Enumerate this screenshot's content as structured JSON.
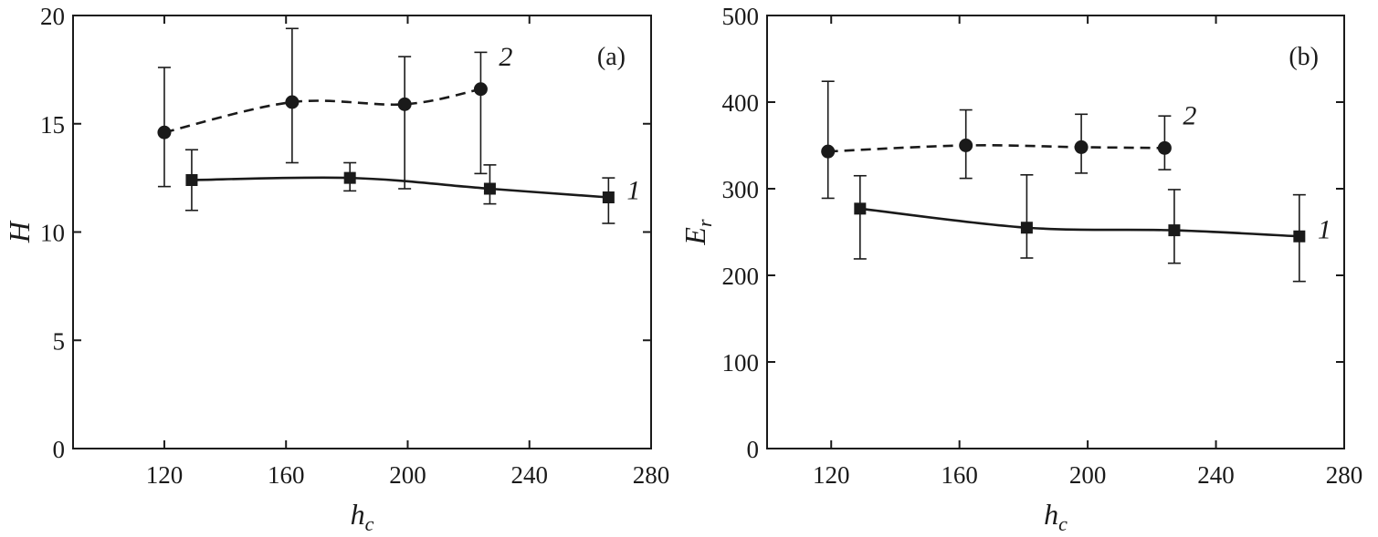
{
  "chart_data": [
    {
      "type": "scatter",
      "panel_label": "(a)",
      "xlabel": "h",
      "xlabel_sub": "c",
      "ylabel": "H",
      "ylabel_sub": "",
      "xlim": [
        90,
        280
      ],
      "ylim": [
        0,
        20
      ],
      "xticks": [
        120,
        160,
        200,
        240,
        280
      ],
      "yticks": [
        0,
        5,
        10,
        15,
        20
      ],
      "grid": false,
      "series": [
        {
          "name": "1",
          "marker": "square",
          "line": "solid",
          "x": [
            129,
            181,
            227,
            266
          ],
          "y": [
            12.4,
            12.5,
            12.0,
            11.6
          ],
          "err_low": [
            11.0,
            11.9,
            11.3,
            10.4
          ],
          "err_high": [
            13.8,
            13.2,
            13.1,
            12.5
          ]
        },
        {
          "name": "2",
          "marker": "circle",
          "line": "dashed",
          "x": [
            120,
            162,
            199,
            224
          ],
          "y": [
            14.6,
            16.0,
            15.9,
            16.6
          ],
          "err_low": [
            12.1,
            13.2,
            12.0,
            12.7
          ],
          "err_high": [
            17.6,
            19.4,
            18.1,
            18.3
          ]
        }
      ]
    },
    {
      "type": "scatter",
      "panel_label": "(b)",
      "xlabel": "h",
      "xlabel_sub": "c",
      "ylabel": "E",
      "ylabel_sub": "r",
      "xlim": [
        100,
        280
      ],
      "ylim": [
        0,
        500
      ],
      "xticks": [
        120,
        160,
        200,
        240,
        280
      ],
      "yticks": [
        0,
        100,
        200,
        300,
        400,
        500
      ],
      "grid": false,
      "series": [
        {
          "name": "1",
          "marker": "square",
          "line": "solid",
          "x": [
            129,
            181,
            227,
            266
          ],
          "y": [
            277,
            255,
            252,
            245
          ],
          "err_low": [
            219,
            220,
            214,
            193
          ],
          "err_high": [
            315,
            316,
            299,
            293
          ]
        },
        {
          "name": "2",
          "marker": "circle",
          "line": "dashed",
          "x": [
            119,
            162,
            198,
            224
          ],
          "y": [
            343,
            350,
            348,
            347
          ],
          "err_low": [
            289,
            312,
            318,
            322
          ],
          "err_high": [
            424,
            391,
            386,
            384
          ]
        }
      ]
    }
  ]
}
